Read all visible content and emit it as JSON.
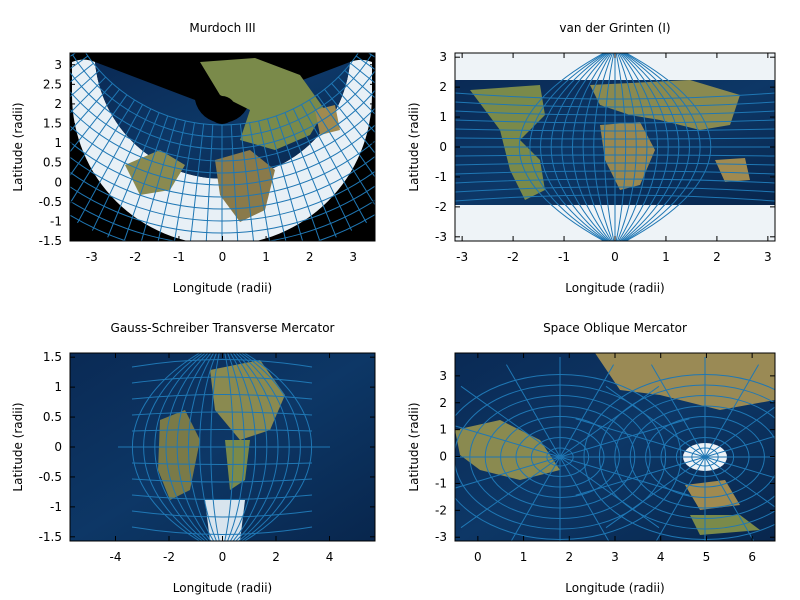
{
  "chart_data": [
    {
      "type": "map",
      "title": "Murdoch III",
      "xlabel": "Longitude (radii)",
      "ylabel": "Latitude (radii)",
      "xticks": [
        -3,
        -2,
        -1,
        0,
        1,
        2,
        3
      ],
      "yticks": [
        -1.5,
        -1,
        -0.5,
        0,
        0.5,
        1,
        1.5,
        2,
        2.5,
        3
      ],
      "xtick_labels": [
        "-3",
        "-2",
        "-1",
        "0",
        "1",
        "2",
        "3"
      ],
      "ytick_labels": [
        "-1.5",
        "-1",
        "-0.5",
        "0",
        "0.5",
        "1",
        "1.5",
        "2",
        "2.5",
        "3"
      ],
      "xlim": [
        -3.5,
        3.5
      ],
      "ylim": [
        -1.5,
        3.3
      ],
      "graticule_color": "#1f77b4"
    },
    {
      "type": "map",
      "title": "van der Grinten (I)",
      "xlabel": "Longitude (radii)",
      "ylabel": "Latitude (radii)",
      "xticks": [
        -3,
        -2,
        -1,
        0,
        1,
        2,
        3
      ],
      "yticks": [
        -3,
        -2,
        -1,
        0,
        1,
        2,
        3
      ],
      "xtick_labels": [
        "-3",
        "-2",
        "-1",
        "0",
        "1",
        "2",
        "3"
      ],
      "ytick_labels": [
        "-3",
        "-2",
        "-1",
        "0",
        "1",
        "2",
        "3"
      ],
      "xlim": [
        -3.14,
        3.14
      ],
      "ylim": [
        -3.14,
        3.14
      ],
      "graticule_color": "#1f77b4"
    },
    {
      "type": "map",
      "title": "Gauss-Schreiber Transverse Mercator",
      "xlabel": "Longitude (radii)",
      "ylabel": "Latitude (radii)",
      "xticks": [
        -4,
        -2,
        0,
        2,
        4
      ],
      "yticks": [
        -1.5,
        -1,
        -0.5,
        0,
        0.5,
        1,
        1.5
      ],
      "xtick_labels": [
        "-4",
        "-2",
        "0",
        "2",
        "4"
      ],
      "ytick_labels": [
        "-1.5",
        "-1",
        "-0.5",
        "0",
        "0.5",
        "1",
        "1.5"
      ],
      "xlim": [
        -5.7,
        5.7
      ],
      "ylim": [
        -1.57,
        1.57
      ],
      "graticule_color": "#1f77b4"
    },
    {
      "type": "map",
      "title": "Space Oblique Mercator",
      "xlabel": "Longitude (radii)",
      "ylabel": "Latitude (radii)",
      "xticks": [
        0,
        1,
        2,
        3,
        4,
        5,
        6
      ],
      "yticks": [
        -3,
        -2,
        -1,
        0,
        1,
        2,
        3
      ],
      "xtick_labels": [
        "0",
        "1",
        "2",
        "3",
        "4",
        "5",
        "6"
      ],
      "ytick_labels": [
        "-3",
        "-2",
        "-1",
        "0",
        "1",
        "2",
        "3"
      ],
      "xlim": [
        -0.5,
        6.5
      ],
      "ylim": [
        -3.14,
        3.85
      ],
      "graticule_color": "#1f77b4"
    }
  ]
}
